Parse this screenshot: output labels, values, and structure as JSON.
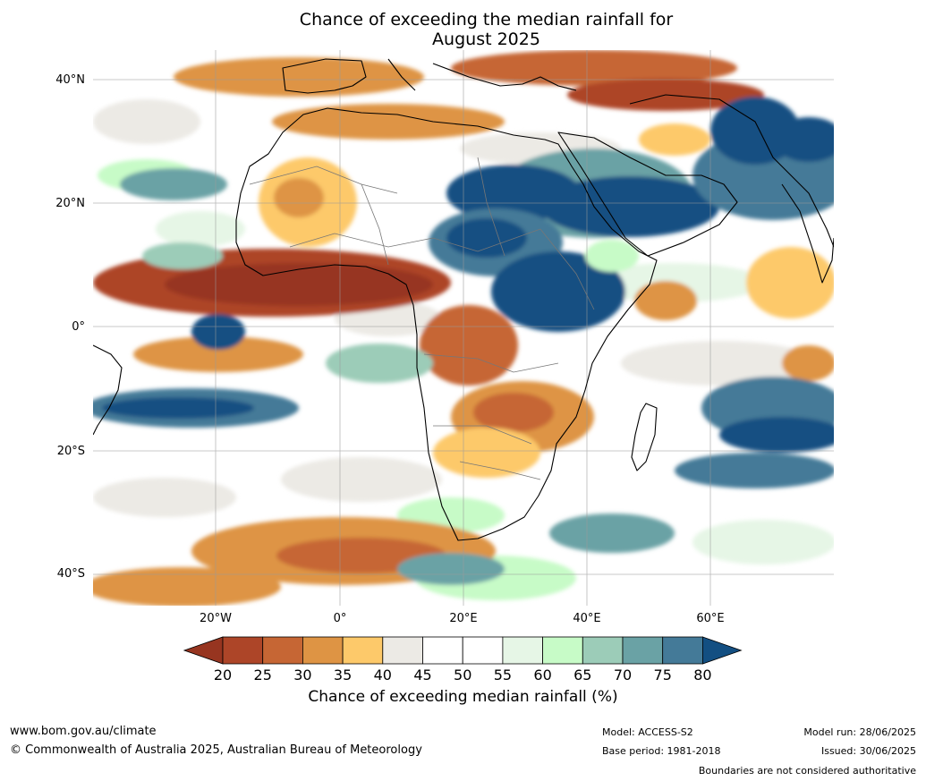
{
  "title": {
    "line1": "Chance of exceeding the median rainfall for",
    "line2": "August 2025"
  },
  "map": {
    "lat_labels": [
      "40°N",
      "20°N",
      "0°",
      "20°S",
      "40°S"
    ],
    "lon_labels": [
      "20°W",
      "0°",
      "20°E",
      "40°E",
      "60°E"
    ]
  },
  "colorbar": {
    "ticks": [
      "20",
      "25",
      "30",
      "35",
      "40",
      "45",
      "50",
      "55",
      "60",
      "65",
      "70",
      "75",
      "80"
    ],
    "colors": [
      "#973520",
      "#ad4528",
      "#c66634",
      "#de9444",
      "#fdc96a",
      "#eceae5",
      "#ffffff",
      "#ffffff",
      "#e6f6e6",
      "#c7fbc7",
      "#9cccb8",
      "#6aa2a5",
      "#447a98",
      "#134f82"
    ],
    "label": "Chance of exceeding median rainfall (%)"
  },
  "footer": {
    "website": "www.bom.gov.au/climate",
    "copyright": "© Commonwealth of Australia 2025, Australian Bureau of Meteorology",
    "model": "Model: ACCESS-S2",
    "base_period": "Base period: 1981-2018",
    "model_run": "Model run: 28/06/2025",
    "issued": "Issued: 30/06/2025",
    "disclaimer": "Boundaries are not considered authoritative"
  }
}
